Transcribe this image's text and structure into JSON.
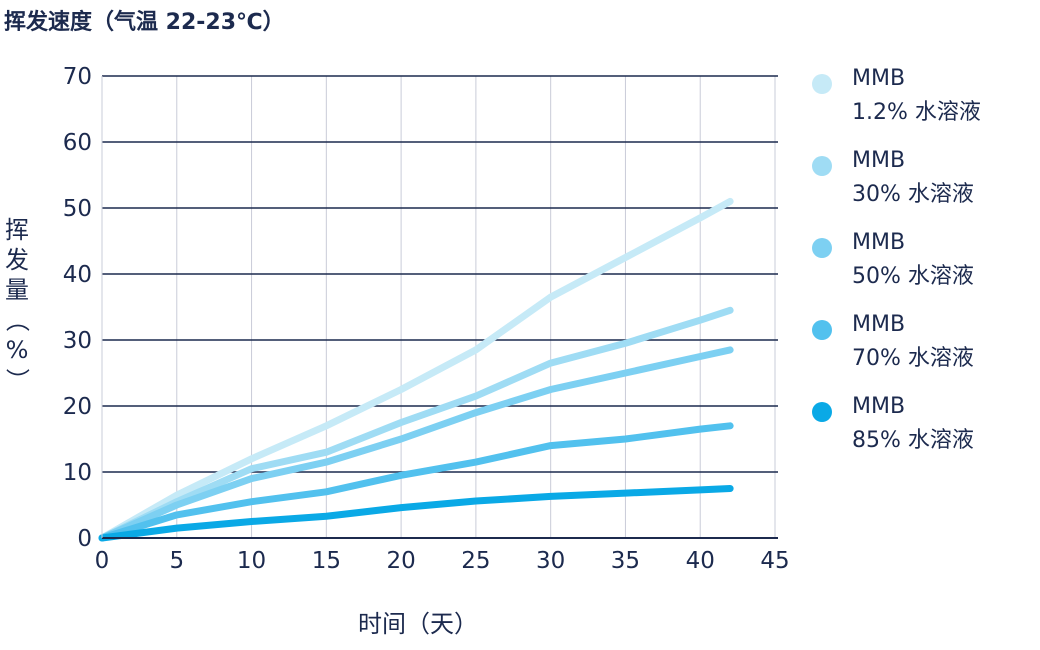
{
  "chart_data": {
    "type": "line",
    "title": "挥发速度（气温 22-23℃）",
    "xlabel": "时间（天）",
    "ylabel": "挥发量（%）",
    "xlim": [
      0,
      45
    ],
    "ylim": [
      0,
      70
    ],
    "xticks": [
      0,
      5,
      10,
      15,
      20,
      25,
      30,
      35,
      40,
      45
    ],
    "yticks": [
      0,
      10,
      20,
      30,
      40,
      50,
      60,
      70
    ],
    "grid": "horizontal and vertical",
    "legend_position": "right",
    "series": [
      {
        "name": "MMB 1.2% 水溶液",
        "line1": "MMB",
        "line2": "1.2% 水溶液",
        "color": "#c6eaf7",
        "x": [
          0,
          5,
          10,
          15,
          20,
          25,
          30,
          35,
          40,
          42
        ],
        "y": [
          0,
          6.5,
          12,
          17,
          22.5,
          28.5,
          36.5,
          42.5,
          48.5,
          51
        ]
      },
      {
        "name": "MMB 30% 水溶液",
        "line1": "MMB",
        "line2": "30% 水溶液",
        "color": "#9fdcf4",
        "x": [
          0,
          5,
          10,
          15,
          20,
          25,
          30,
          35,
          40,
          42
        ],
        "y": [
          0,
          5.5,
          10.5,
          13,
          17.5,
          21.5,
          26.5,
          29.5,
          33,
          34.5
        ]
      },
      {
        "name": "MMB 50% 水溶液",
        "line1": "MMB",
        "line2": "50% 水溶液",
        "color": "#7dd0f2",
        "x": [
          0,
          5,
          10,
          15,
          20,
          25,
          30,
          35,
          40,
          42
        ],
        "y": [
          0,
          5,
          9,
          11.5,
          15,
          19,
          22.5,
          25,
          27.5,
          28.5
        ]
      },
      {
        "name": "MMB 70% 水溶液",
        "line1": "MMB",
        "line2": "70% 水溶液",
        "color": "#52c1ee",
        "x": [
          0,
          5,
          10,
          15,
          20,
          25,
          30,
          35,
          40,
          42
        ],
        "y": [
          0,
          3.5,
          5.5,
          7,
          9.5,
          11.5,
          14,
          15,
          16.5,
          17
        ]
      },
      {
        "name": "MMB 85% 水溶液",
        "line1": "MMB",
        "line2": "85% 水溶液",
        "color": "#0aa9e6",
        "x": [
          0,
          5,
          10,
          15,
          20,
          25,
          30,
          35,
          40,
          42
        ],
        "y": [
          0,
          1.5,
          2.5,
          3.3,
          4.6,
          5.6,
          6.3,
          6.8,
          7.3,
          7.5
        ]
      }
    ]
  }
}
